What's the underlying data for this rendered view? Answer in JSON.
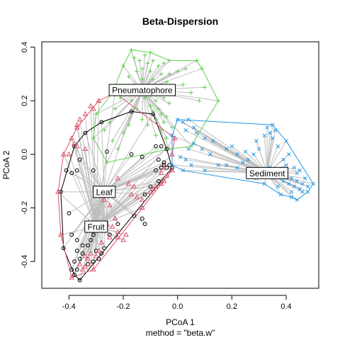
{
  "chart_data": {
    "type": "scatter",
    "title": "Beta-Dispersion",
    "xlabel": "PCoA 1",
    "ylabel": "PCoA 2",
    "sublabel": "method = \"beta.w\"",
    "xlim": [
      -0.5,
      0.52
    ],
    "ylim": [
      -0.5,
      0.42
    ],
    "x_ticks": [
      -0.4,
      -0.2,
      0.0,
      0.2,
      0.4
    ],
    "x_tick_labels": [
      "-0.4",
      "-0.2",
      "0.0",
      "0.2",
      "0.4"
    ],
    "y_ticks": [
      -0.4,
      -0.2,
      0.0,
      0.2,
      0.4
    ],
    "y_tick_labels": [
      "-0.4",
      "-0.2",
      "0.0",
      "0.2",
      "0.4"
    ],
    "grid": false,
    "groups": [
      {
        "name": "Leaf",
        "color": "#000000",
        "marker": "circle",
        "centroid": [
          -0.27,
          -0.14
        ],
        "hull": [
          [
            -0.17,
            0.16
          ],
          [
            -0.28,
            0.12
          ],
          [
            -0.34,
            0.08
          ],
          [
            -0.38,
            0.03
          ],
          [
            -0.43,
            -0.14
          ],
          [
            -0.42,
            -0.35
          ],
          [
            -0.38,
            -0.45
          ],
          [
            -0.36,
            -0.47
          ],
          [
            -0.02,
            -0.05
          ],
          [
            -0.04,
            0.02
          ],
          [
            -0.09,
            0.15
          ]
        ],
        "points": [
          [
            -0.17,
            0.16
          ],
          [
            -0.28,
            0.12
          ],
          [
            -0.34,
            0.08
          ],
          [
            -0.38,
            0.03
          ],
          [
            -0.43,
            -0.14
          ],
          [
            -0.42,
            -0.35
          ],
          [
            -0.38,
            -0.45
          ],
          [
            -0.36,
            -0.47
          ],
          [
            -0.02,
            -0.05
          ],
          [
            -0.04,
            0.02
          ],
          [
            -0.09,
            0.15
          ],
          [
            -0.4,
            -0.22
          ],
          [
            -0.39,
            -0.3
          ],
          [
            -0.41,
            -0.06
          ],
          [
            -0.39,
            -0.07
          ],
          [
            -0.37,
            -0.06
          ],
          [
            -0.36,
            -0.02
          ],
          [
            -0.31,
            -0.06
          ],
          [
            -0.26,
            0.01
          ],
          [
            -0.17,
            0.0
          ],
          [
            -0.13,
            -0.01
          ],
          [
            -0.08,
            0.03
          ],
          [
            -0.06,
            0.03
          ],
          [
            -0.05,
            -0.04
          ],
          [
            -0.05,
            -0.03
          ],
          [
            -0.04,
            -0.05
          ],
          [
            -0.03,
            -0.04
          ],
          [
            -0.06,
            -0.05
          ],
          [
            -0.08,
            -0.06
          ],
          [
            -0.07,
            -0.02
          ],
          [
            -0.3,
            -0.28
          ],
          [
            -0.31,
            -0.3
          ],
          [
            -0.32,
            -0.32
          ],
          [
            -0.37,
            -0.32
          ],
          [
            -0.35,
            -0.34
          ],
          [
            -0.33,
            -0.34
          ],
          [
            -0.35,
            -0.37
          ],
          [
            -0.36,
            -0.39
          ],
          [
            -0.38,
            -0.4
          ],
          [
            -0.37,
            -0.43
          ],
          [
            -0.39,
            -0.43
          ],
          [
            -0.3,
            -0.36
          ],
          [
            -0.28,
            -0.37
          ],
          [
            -0.27,
            -0.35
          ],
          [
            -0.29,
            -0.39
          ],
          [
            -0.31,
            -0.4
          ],
          [
            -0.33,
            -0.41
          ],
          [
            -0.37,
            -0.36
          ],
          [
            -0.25,
            -0.3
          ],
          [
            -0.22,
            -0.26
          ],
          [
            -0.16,
            -0.23
          ],
          [
            -0.12,
            -0.15
          ],
          [
            -0.1,
            -0.12
          ],
          [
            -0.07,
            -0.1
          ],
          [
            -0.13,
            -0.24
          ],
          [
            -0.12,
            -0.26
          ]
        ]
      },
      {
        "name": "Fruit",
        "color": "#DF536B",
        "marker": "triangle",
        "centroid": [
          -0.3,
          -0.27
        ],
        "hull": [
          [
            -0.29,
            0.2
          ],
          [
            -0.37,
            0.1
          ],
          [
            -0.42,
            0.0
          ],
          [
            -0.44,
            -0.14
          ],
          [
            -0.43,
            -0.3
          ],
          [
            -0.39,
            -0.46
          ],
          [
            -0.31,
            -0.43
          ],
          [
            -0.02,
            -0.06
          ],
          [
            -0.02,
            0.0
          ],
          [
            -0.01,
            0.06
          ],
          [
            -0.23,
            0.23
          ]
        ],
        "points": [
          [
            -0.29,
            0.2
          ],
          [
            -0.37,
            0.1
          ],
          [
            -0.42,
            0.0
          ],
          [
            -0.44,
            -0.14
          ],
          [
            -0.43,
            -0.3
          ],
          [
            -0.39,
            -0.46
          ],
          [
            -0.31,
            -0.43
          ],
          [
            -0.02,
            -0.06
          ],
          [
            -0.02,
            0.0
          ],
          [
            -0.01,
            0.06
          ],
          [
            -0.23,
            0.23
          ],
          [
            -0.32,
            0.18
          ],
          [
            -0.31,
            0.17
          ],
          [
            -0.34,
            0.15
          ],
          [
            -0.36,
            0.13
          ],
          [
            -0.37,
            0.11
          ],
          [
            -0.39,
            0.06
          ],
          [
            -0.38,
            0.04
          ],
          [
            -0.4,
            0.0
          ],
          [
            -0.37,
            0.03
          ],
          [
            -0.34,
            0.02
          ],
          [
            -0.22,
            -0.09
          ],
          [
            -0.18,
            -0.11
          ],
          [
            -0.16,
            -0.12
          ],
          [
            -0.17,
            -0.15
          ],
          [
            -0.15,
            -0.16
          ],
          [
            -0.13,
            -0.17
          ],
          [
            -0.13,
            -0.2
          ],
          [
            -0.1,
            -0.14
          ],
          [
            -0.08,
            -0.12
          ],
          [
            -0.05,
            -0.1
          ],
          [
            -0.06,
            -0.11
          ],
          [
            -0.09,
            -0.13
          ],
          [
            -0.23,
            -0.24
          ],
          [
            -0.26,
            -0.26
          ],
          [
            -0.24,
            -0.27
          ],
          [
            -0.22,
            -0.29
          ],
          [
            -0.19,
            -0.3
          ],
          [
            -0.22,
            -0.31
          ],
          [
            -0.25,
            -0.31
          ],
          [
            -0.2,
            -0.32
          ],
          [
            -0.28,
            -0.33
          ],
          [
            -0.29,
            -0.36
          ],
          [
            -0.3,
            -0.38
          ],
          [
            -0.32,
            -0.41
          ],
          [
            -0.34,
            -0.42
          ],
          [
            -0.35,
            -0.43
          ],
          [
            -0.36,
            -0.41
          ],
          [
            -0.34,
            -0.38
          ],
          [
            -0.32,
            -0.37
          ],
          [
            -0.33,
            -0.39
          ],
          [
            -0.25,
            -0.19
          ],
          [
            -0.27,
            -0.17
          ],
          [
            -0.29,
            -0.15
          ],
          [
            -0.05,
            -0.05
          ],
          [
            -0.06,
            -0.07
          ],
          [
            -0.04,
            -0.08
          ]
        ]
      },
      {
        "name": "Pneumatophore",
        "color": "#61D04F",
        "marker": "plus",
        "centroid": [
          -0.13,
          0.24
        ],
        "hull": [
          [
            -0.17,
            0.39
          ],
          [
            -0.1,
            0.38
          ],
          [
            -0.03,
            0.35
          ],
          [
            0.07,
            0.35
          ],
          [
            0.09,
            0.32
          ],
          [
            0.15,
            0.2
          ],
          [
            0.05,
            0.03
          ],
          [
            -0.03,
            0.02
          ],
          [
            -0.26,
            -0.03
          ],
          [
            -0.31,
            0.06
          ],
          [
            -0.3,
            0.15
          ],
          [
            -0.24,
            0.23
          ],
          [
            -0.2,
            0.33
          ]
        ],
        "points": [
          [
            -0.17,
            0.39
          ],
          [
            -0.1,
            0.38
          ],
          [
            -0.03,
            0.35
          ],
          [
            0.07,
            0.35
          ],
          [
            0.09,
            0.32
          ],
          [
            0.15,
            0.2
          ],
          [
            0.05,
            0.03
          ],
          [
            -0.03,
            0.02
          ],
          [
            -0.26,
            -0.03
          ],
          [
            -0.31,
            0.06
          ],
          [
            -0.3,
            0.15
          ],
          [
            -0.24,
            0.23
          ],
          [
            -0.2,
            0.33
          ],
          [
            -0.16,
            0.36
          ],
          [
            -0.14,
            0.35
          ],
          [
            -0.12,
            0.37
          ],
          [
            -0.11,
            0.34
          ],
          [
            -0.09,
            0.35
          ],
          [
            -0.07,
            0.33
          ],
          [
            -0.05,
            0.34
          ],
          [
            -0.13,
            0.32
          ],
          [
            -0.15,
            0.31
          ],
          [
            -0.1,
            0.31
          ],
          [
            -0.06,
            0.3
          ],
          [
            -0.03,
            0.3
          ],
          [
            0.0,
            0.31
          ],
          [
            0.03,
            0.32
          ],
          [
            -0.18,
            0.29
          ],
          [
            -0.13,
            0.28
          ],
          [
            -0.09,
            0.28
          ],
          [
            -0.04,
            0.27
          ],
          [
            -0.16,
            0.26
          ],
          [
            -0.14,
            0.25
          ],
          [
            -0.11,
            0.26
          ],
          [
            -0.07,
            0.25
          ],
          [
            -0.02,
            0.25
          ],
          [
            0.02,
            0.26
          ],
          [
            -0.1,
            0.22
          ],
          [
            -0.12,
            0.21
          ],
          [
            -0.08,
            0.2
          ],
          [
            -0.05,
            0.21
          ],
          [
            -0.03,
            0.19
          ],
          [
            -0.07,
            0.17
          ],
          [
            -0.09,
            0.16
          ],
          [
            -0.06,
            0.15
          ],
          [
            -0.04,
            0.14
          ],
          [
            -0.08,
            0.13
          ],
          [
            -0.1,
            0.18
          ],
          [
            -0.13,
            0.13
          ],
          [
            -0.15,
            0.17
          ],
          [
            -0.17,
            0.2
          ],
          [
            -0.11,
            0.11
          ],
          [
            -0.05,
            0.12
          ],
          [
            -0.02,
            0.1
          ],
          [
            -0.06,
            0.09
          ],
          [
            -0.08,
            0.07
          ],
          [
            -0.04,
            0.06
          ],
          [
            0.05,
            0.23
          ],
          [
            0.08,
            0.2
          ],
          [
            0.1,
            0.25
          ],
          [
            -0.19,
            0.24
          ],
          [
            -0.21,
            0.21
          ],
          [
            -0.23,
            0.17
          ],
          [
            -0.25,
            0.12
          ],
          [
            -0.27,
            0.09
          ],
          [
            -0.24,
            0.05
          ],
          [
            -0.22,
            0.02
          ],
          [
            -0.2,
            0.08
          ],
          [
            -0.18,
            0.11
          ]
        ]
      },
      {
        "name": "Sediment",
        "color": "#2297E6",
        "marker": "cross",
        "centroid": [
          0.33,
          -0.07
        ],
        "hull": [
          [
            0.0,
            0.13
          ],
          [
            0.35,
            0.11
          ],
          [
            0.4,
            0.05
          ],
          [
            0.5,
            -0.11
          ],
          [
            0.48,
            -0.14
          ],
          [
            0.44,
            -0.17
          ],
          [
            0.42,
            -0.16
          ],
          [
            0.38,
            -0.15
          ],
          [
            0.32,
            -0.11
          ],
          [
            0.02,
            -0.06
          ],
          [
            -0.02,
            -0.04
          ],
          [
            -0.02,
            0.07
          ]
        ],
        "points": [
          [
            0.0,
            0.13
          ],
          [
            0.35,
            0.11
          ],
          [
            0.4,
            0.05
          ],
          [
            0.5,
            -0.11
          ],
          [
            0.48,
            -0.14
          ],
          [
            0.44,
            -0.17
          ],
          [
            0.42,
            -0.16
          ],
          [
            0.38,
            -0.15
          ],
          [
            0.32,
            -0.11
          ],
          [
            0.02,
            -0.06
          ],
          [
            -0.02,
            -0.04
          ],
          [
            -0.02,
            0.07
          ],
          [
            0.03,
            0.09
          ],
          [
            0.02,
            0.12
          ],
          [
            0.04,
            0.13
          ],
          [
            0.06,
            0.1
          ],
          [
            0.07,
            0.08
          ],
          [
            0.1,
            0.06
          ],
          [
            0.13,
            0.05
          ],
          [
            0.06,
            0.04
          ],
          [
            0.09,
            0.02
          ],
          [
            0.12,
            0.0
          ],
          [
            0.18,
            0.02
          ],
          [
            0.2,
            0.03
          ],
          [
            0.22,
            0.0
          ],
          [
            0.25,
            0.01
          ],
          [
            0.26,
            -0.02
          ],
          [
            0.24,
            -0.03
          ],
          [
            0.28,
            0.0
          ],
          [
            0.3,
            0.02
          ],
          [
            0.29,
            0.05
          ],
          [
            0.32,
            0.07
          ],
          [
            0.34,
            0.08
          ],
          [
            0.35,
            0.06
          ],
          [
            0.36,
            0.09
          ],
          [
            0.33,
            0.1
          ],
          [
            0.37,
            0.03
          ],
          [
            0.34,
            -0.05
          ],
          [
            0.36,
            -0.06
          ],
          [
            0.38,
            -0.08
          ],
          [
            0.4,
            -0.07
          ],
          [
            0.42,
            -0.09
          ],
          [
            0.44,
            -0.1
          ],
          [
            0.46,
            -0.11
          ],
          [
            0.45,
            -0.13
          ],
          [
            0.43,
            -0.12
          ],
          [
            0.41,
            -0.11
          ],
          [
            0.39,
            -0.1
          ],
          [
            0.37,
            -0.12
          ],
          [
            0.42,
            -0.14
          ],
          [
            0.46,
            -0.14
          ],
          [
            0.48,
            -0.12
          ],
          [
            0.47,
            -0.09
          ],
          [
            0.44,
            -0.07
          ],
          [
            0.4,
            -0.04
          ],
          [
            0.43,
            -0.05
          ],
          [
            0.45,
            -0.06
          ],
          [
            0.39,
            -0.02
          ],
          [
            0.41,
            0.0
          ],
          [
            0.27,
            -0.07
          ],
          [
            0.29,
            -0.09
          ],
          [
            0.31,
            -0.08
          ],
          [
            0.22,
            -0.05
          ],
          [
            0.18,
            -0.04
          ],
          [
            0.15,
            -0.04
          ],
          [
            0.1,
            -0.06
          ],
          [
            0.05,
            -0.04
          ],
          [
            0.03,
            -0.02
          ],
          [
            0.01,
            -0.01
          ],
          [
            0.04,
            0.02
          ]
        ]
      }
    ]
  }
}
